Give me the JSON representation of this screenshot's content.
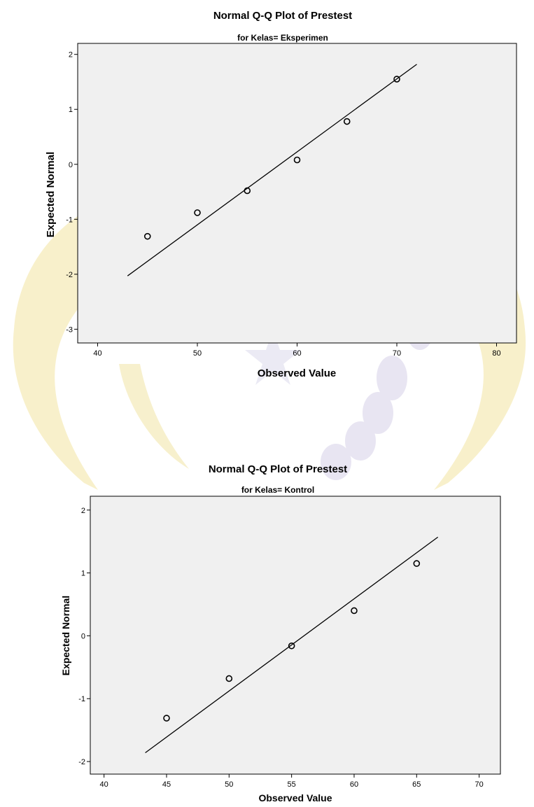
{
  "chart_data": [
    {
      "type": "scatter",
      "title": "Normal Q-Q Plot of Prestest",
      "subtitle": "for Kelas= Eksperimen",
      "xlabel": "Observed Value",
      "ylabel": "Expected Normal",
      "xlim": [
        38,
        82
      ],
      "ylim": [
        -3.25,
        2.2
      ],
      "xticks": [
        "40",
        "50",
        "60",
        "70",
        "80"
      ],
      "yticks": [
        "2",
        "1",
        "0",
        "-1",
        "-2",
        "-3"
      ],
      "grid": false,
      "points": [
        {
          "x": 45,
          "y": -1.31
        },
        {
          "x": 50,
          "y": -0.88
        },
        {
          "x": 55,
          "y": -0.48
        },
        {
          "x": 60,
          "y": 0.08
        },
        {
          "x": 65,
          "y": 0.78
        },
        {
          "x": 70,
          "y": 1.55
        }
      ],
      "reference_line": [
        {
          "x": 43.0,
          "y": -2.03
        },
        {
          "x": 72.0,
          "y": 1.82
        }
      ]
    },
    {
      "type": "scatter",
      "title": "Normal Q-Q Plot of Prestest",
      "subtitle": "for Kelas= Kontrol",
      "xlabel": "Observed Value",
      "ylabel": "Expected Normal",
      "xlim": [
        38.9,
        71.7
      ],
      "ylim": [
        -2.2,
        2.22
      ],
      "xticks": [
        "40",
        "45",
        "50",
        "55",
        "60",
        "65",
        "70"
      ],
      "yticks": [
        "2",
        "1",
        "0",
        "-1",
        "-2"
      ],
      "grid": false,
      "points": [
        {
          "x": 45,
          "y": -1.31
        },
        {
          "x": 50,
          "y": -0.68
        },
        {
          "x": 55,
          "y": -0.16
        },
        {
          "x": 60,
          "y": 0.4
        },
        {
          "x": 65,
          "y": 1.15
        }
      ],
      "reference_line": [
        {
          "x": 43.3,
          "y": -1.86
        },
        {
          "x": 66.7,
          "y": 1.57
        }
      ]
    }
  ],
  "colors": {
    "plot_background": "#f0f0f0",
    "frame": "#000000",
    "marker": "#000000",
    "watermark": "#f3e3a0"
  }
}
